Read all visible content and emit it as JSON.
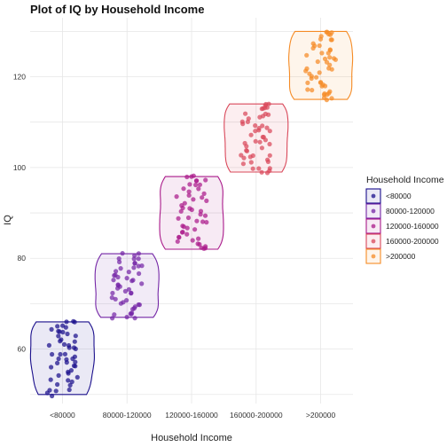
{
  "chart_data": {
    "type": "violin",
    "title": "Plot of IQ by Household Income",
    "xlabel": "Household Income",
    "ylabel": "IQ",
    "categories": [
      "<80000",
      "80000-120000",
      "120000-160000",
      "160000-200000",
      ">200000"
    ],
    "yticks": [
      60,
      80,
      100,
      120
    ],
    "ylim": [
      48,
      133
    ],
    "grid": true,
    "legend": {
      "title": "Household Income",
      "position": "right",
      "labels": [
        "<80000",
        "80000-120000",
        "120000-160000",
        "160000-200000",
        ">200000"
      ]
    },
    "colors": [
      "#1a0f8c",
      "#7426a6",
      "#aa1a8a",
      "#d9485a",
      "#f58b25"
    ],
    "series": [
      {
        "category": "<80000",
        "min": 50,
        "max": 66,
        "values": [
          50,
          51,
          51,
          52,
          52,
          53,
          53,
          54,
          55,
          55,
          56,
          56,
          57,
          57,
          58,
          58,
          58,
          59,
          59,
          60,
          60,
          61,
          61,
          62,
          62,
          63,
          63,
          64,
          64,
          64,
          65,
          65,
          66,
          66,
          66,
          65,
          63,
          61,
          59,
          57,
          55,
          53,
          51,
          50,
          54,
          58,
          62,
          64,
          60,
          56
        ]
      },
      {
        "category": "80000-120000",
        "min": 67,
        "max": 81,
        "values": [
          67,
          67,
          68,
          68,
          69,
          69,
          70,
          70,
          71,
          71,
          72,
          72,
          73,
          73,
          74,
          74,
          75,
          75,
          76,
          76,
          77,
          77,
          78,
          78,
          79,
          79,
          80,
          80,
          81,
          81,
          80,
          78,
          76,
          74,
          72,
          70,
          68,
          67,
          69,
          71,
          73,
          75,
          77,
          79,
          81,
          70,
          74,
          78,
          68,
          76
        ]
      },
      {
        "category": "120000-160000",
        "min": 82,
        "max": 98,
        "values": [
          82,
          82,
          83,
          83,
          84,
          84,
          85,
          85,
          86,
          86,
          87,
          87,
          88,
          88,
          89,
          89,
          90,
          90,
          91,
          91,
          92,
          92,
          93,
          93,
          94,
          94,
          95,
          95,
          96,
          96,
          97,
          97,
          98,
          98,
          98,
          97,
          95,
          93,
          91,
          89,
          87,
          85,
          83,
          82,
          86,
          90,
          94,
          96,
          84,
          88
        ]
      },
      {
        "category": "160000-200000",
        "min": 99,
        "max": 114,
        "values": [
          99,
          99,
          100,
          100,
          101,
          101,
          102,
          102,
          103,
          103,
          104,
          104,
          105,
          105,
          106,
          106,
          107,
          107,
          108,
          108,
          109,
          109,
          110,
          110,
          111,
          111,
          112,
          112,
          113,
          113,
          114,
          114,
          114,
          113,
          111,
          109,
          107,
          105,
          103,
          101,
          99,
          100,
          104,
          108,
          112,
          106,
          110,
          102,
          109,
          113
        ]
      },
      {
        "category": ">200000",
        "min": 115,
        "max": 130,
        "values": [
          115,
          115,
          116,
          116,
          117,
          117,
          118,
          118,
          119,
          119,
          120,
          120,
          121,
          121,
          122,
          122,
          123,
          123,
          124,
          124,
          125,
          125,
          126,
          126,
          127,
          127,
          128,
          128,
          129,
          129,
          130,
          130,
          130,
          128,
          126,
          124,
          122,
          120,
          118,
          116,
          115,
          117,
          121,
          125,
          129,
          119,
          123,
          127,
          116,
          124
        ]
      }
    ]
  }
}
